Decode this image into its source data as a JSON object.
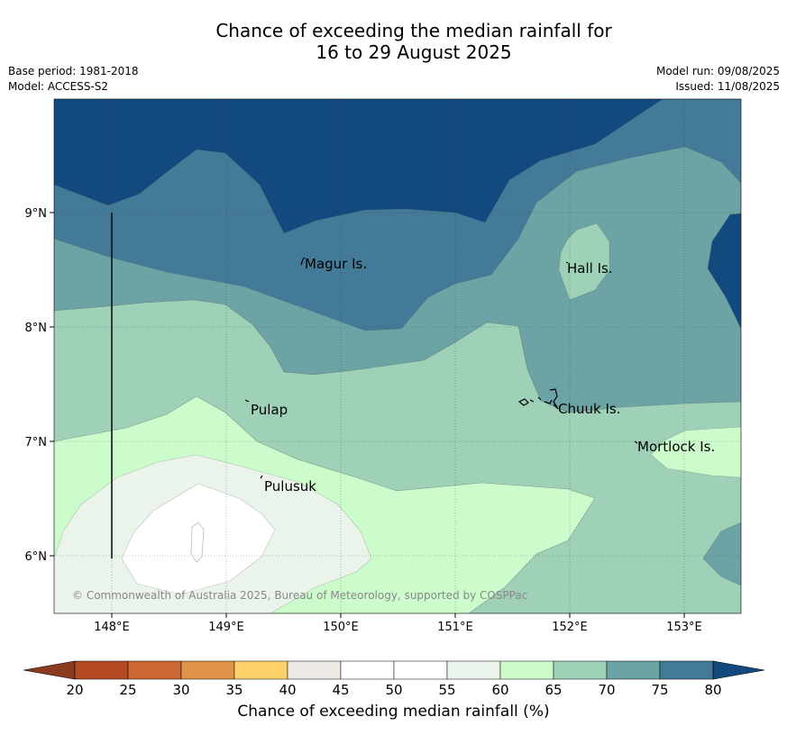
{
  "title_line1": "Chance of exceeding the median rainfall for",
  "title_line2": "16 to 29 August 2025",
  "base_period": "Base period: 1981-2018",
  "model": "Model: ACCESS-S2",
  "model_run": "Model run: 09/08/2025",
  "issued": "Issued: 11/08/2025",
  "copyright": "© Commonwealth of Australia 2025, Bureau of Meteorology, supported by COSPPac",
  "lat_labels": [
    "9°N",
    "8°N",
    "7°N",
    "6°N"
  ],
  "lon_labels": [
    "148°E",
    "149°E",
    "150°E",
    "151°E",
    "152°E",
    "153°E"
  ],
  "places": [
    "Magur Is.",
    "Hall Is.",
    "Pulap",
    "Chuuk Is.",
    "Mortlock Is.",
    "Pulusuk"
  ],
  "colorbar": {
    "title": "Chance of exceeding median rainfall (%)",
    "ticks": [
      "20",
      "25",
      "30",
      "35",
      "40",
      "45",
      "50",
      "55",
      "60",
      "65",
      "70",
      "75",
      "80"
    ],
    "colors": [
      "#b34a24",
      "#cc6633",
      "#e0944a",
      "#fdd06a",
      "#ece9e4",
      "#ffffff",
      "#ffffff",
      "#ebf4eb",
      "#ccfccc",
      "#9ed1b8",
      "#6ca3a4",
      "#437a98"
    ],
    "below_color": "#8b3a1e",
    "above_color": "#124a80"
  },
  "map_colors": {
    "above_80": "#124a80",
    "c75_80": "#437a98",
    "c70_75": "#6ca3a4",
    "c65_70": "#9ed1b8",
    "c60_65": "#ccfccc",
    "c55_60": "#ebf4eb",
    "c50_55": "#ffffff"
  }
}
